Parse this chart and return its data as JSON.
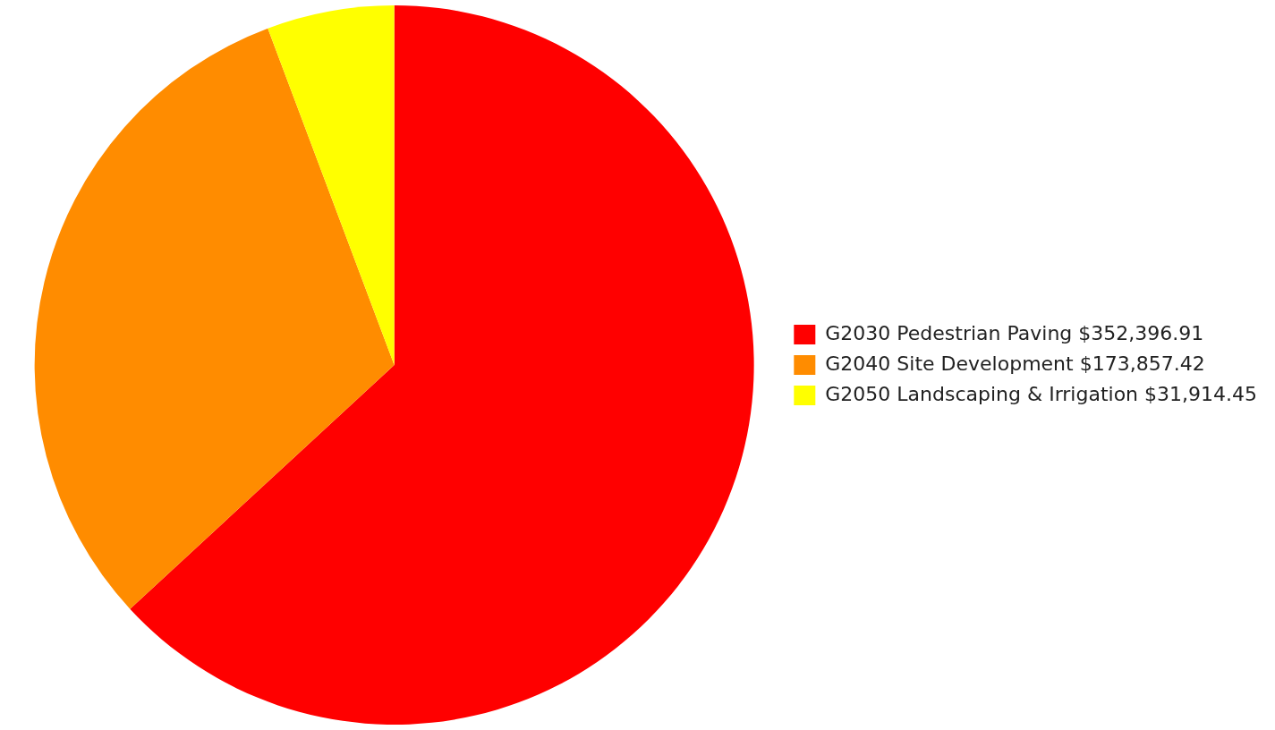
{
  "chart_data": {
    "type": "pie",
    "categories": [
      "G2030 Pedestrian Paving $352,396.91",
      "G2040 Site Development $173,857.42",
      "G2050 Landscaping & Irrigation $31,914.45"
    ],
    "values": [
      352396.91,
      173857.42,
      31914.45
    ],
    "colors": [
      "#ff0000",
      "#ff8c00",
      "#ffff00"
    ],
    "legend": "right"
  }
}
